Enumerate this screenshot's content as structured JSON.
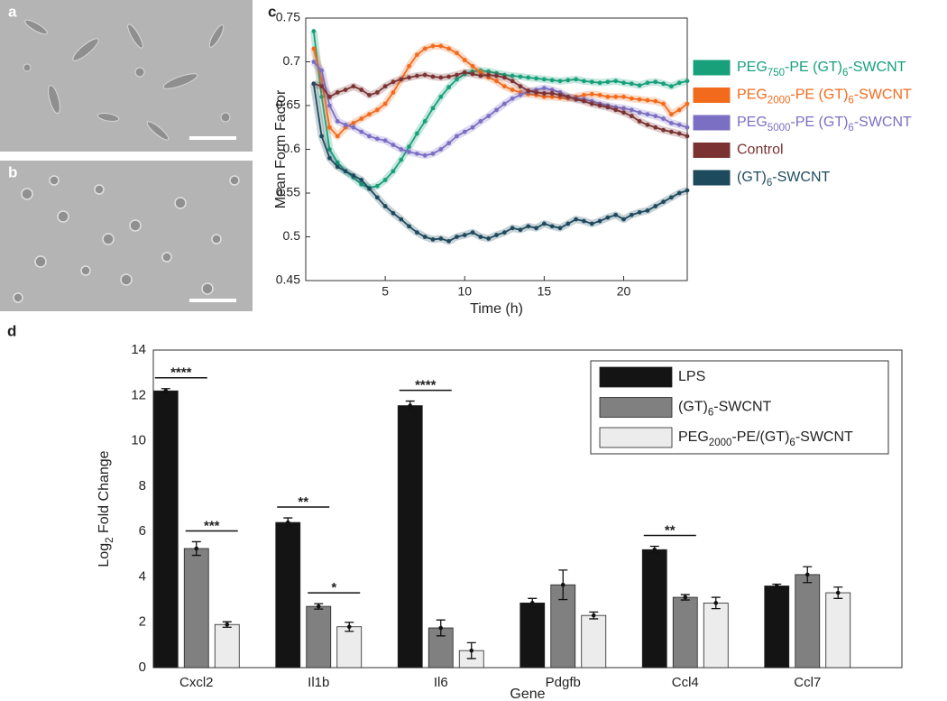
{
  "panel_labels": [
    "a",
    "b",
    "c",
    "d"
  ],
  "chart_data": [
    {
      "type": "line",
      "x_label": "Time (h)",
      "y_label": "Mean Form Factor",
      "xlim": [
        0,
        24
      ],
      "xticks": [
        5,
        10,
        15,
        20
      ],
      "ylim": [
        0.45,
        0.75
      ],
      "yticks": [
        0.45,
        0.5,
        0.55,
        0.6,
        0.65,
        0.7,
        0.75
      ],
      "x": [
        0.5,
        1,
        1.5,
        2,
        2.5,
        3,
        3.5,
        4,
        4.5,
        5,
        5.5,
        6,
        6.5,
        7,
        7.5,
        8,
        8.5,
        9,
        9.5,
        10,
        10.5,
        11,
        11.5,
        12,
        12.5,
        13,
        13.5,
        14,
        14.5,
        15,
        15.5,
        16,
        16.5,
        17,
        17.5,
        18,
        18.5,
        19,
        19.5,
        20,
        20.5,
        21,
        21.5,
        22,
        22.5,
        23,
        23.5,
        24
      ],
      "series": [
        {
          "name": "PEG750-PE (GT)6-SWCNT",
          "color": "#17a07a",
          "values": [
            0.735,
            0.66,
            0.6,
            0.585,
            0.575,
            0.568,
            0.56,
            0.556,
            0.558,
            0.565,
            0.575,
            0.588,
            0.603,
            0.618,
            0.632,
            0.647,
            0.66,
            0.671,
            0.68,
            0.686,
            0.689,
            0.69,
            0.689,
            0.687,
            0.685,
            0.684,
            0.683,
            0.682,
            0.681,
            0.68,
            0.679,
            0.678,
            0.679,
            0.68,
            0.678,
            0.677,
            0.676,
            0.677,
            0.678,
            0.676,
            0.675,
            0.673,
            0.676,
            0.677,
            0.675,
            0.672,
            0.676,
            0.678
          ]
        },
        {
          "name": "PEG2000-PE (GT)6-SWCNT",
          "color": "#f26b1d",
          "values": [
            0.715,
            0.68,
            0.625,
            0.615,
            0.625,
            0.63,
            0.635,
            0.64,
            0.645,
            0.652,
            0.665,
            0.68,
            0.695,
            0.708,
            0.715,
            0.718,
            0.718,
            0.715,
            0.71,
            0.702,
            0.695,
            0.688,
            0.682,
            0.678,
            0.672,
            0.668,
            0.665,
            0.663,
            0.662,
            0.66,
            0.66,
            0.659,
            0.658,
            0.66,
            0.662,
            0.663,
            0.662,
            0.66,
            0.66,
            0.66,
            0.658,
            0.657,
            0.656,
            0.655,
            0.652,
            0.64,
            0.645,
            0.652
          ]
        },
        {
          "name": "PEG5000-PE (GT)6-SWCNT",
          "color": "#7b6fc4",
          "values": [
            0.7,
            0.69,
            0.65,
            0.632,
            0.628,
            0.625,
            0.62,
            0.615,
            0.612,
            0.61,
            0.605,
            0.6,
            0.597,
            0.595,
            0.593,
            0.595,
            0.6,
            0.607,
            0.615,
            0.62,
            0.625,
            0.632,
            0.638,
            0.645,
            0.652,
            0.658,
            0.662,
            0.666,
            0.668,
            0.67,
            0.668,
            0.665,
            0.66,
            0.658,
            0.657,
            0.655,
            0.652,
            0.65,
            0.648,
            0.647,
            0.645,
            0.642,
            0.64,
            0.638,
            0.635,
            0.63,
            0.628,
            0.625
          ]
        },
        {
          "name": "Control",
          "color": "#7b3232",
          "values": [
            0.675,
            0.672,
            0.66,
            0.665,
            0.668,
            0.672,
            0.668,
            0.662,
            0.665,
            0.672,
            0.677,
            0.68,
            0.682,
            0.684,
            0.685,
            0.683,
            0.682,
            0.683,
            0.685,
            0.688,
            0.686,
            0.684,
            0.685,
            0.684,
            0.682,
            0.678,
            0.672,
            0.667,
            0.665,
            0.664,
            0.664,
            0.662,
            0.66,
            0.657,
            0.655,
            0.652,
            0.65,
            0.648,
            0.645,
            0.642,
            0.638,
            0.632,
            0.628,
            0.625,
            0.622,
            0.62,
            0.618,
            0.615
          ]
        },
        {
          "name": "(GT)6-SWCNT",
          "color": "#1e4a5e",
          "values": [
            0.675,
            0.615,
            0.59,
            0.58,
            0.575,
            0.57,
            0.565,
            0.555,
            0.545,
            0.535,
            0.527,
            0.52,
            0.512,
            0.505,
            0.5,
            0.497,
            0.498,
            0.495,
            0.5,
            0.502,
            0.505,
            0.5,
            0.498,
            0.502,
            0.505,
            0.51,
            0.508,
            0.512,
            0.51,
            0.515,
            0.512,
            0.51,
            0.515,
            0.52,
            0.518,
            0.515,
            0.518,
            0.522,
            0.525,
            0.52,
            0.525,
            0.528,
            0.53,
            0.535,
            0.54,
            0.545,
            0.55,
            0.553
          ]
        }
      ]
    },
    {
      "type": "bar",
      "x_label": "Gene",
      "y_label": "Log2 Fold Change",
      "categories": [
        "Cxcl2",
        "Il1b",
        "Il6",
        "Pdgfb",
        "Ccl4",
        "Ccl7"
      ],
      "ylim": [
        0,
        14
      ],
      "yticks": [
        0,
        2,
        4,
        6,
        8,
        10,
        12,
        14
      ],
      "series": [
        {
          "name": "LPS",
          "color": "#141414",
          "values": [
            12.2,
            6.4,
            11.55,
            2.85,
            5.2,
            3.6
          ],
          "errors": [
            0.1,
            0.2,
            0.2,
            0.2,
            0.15,
            0.08
          ]
        },
        {
          "name": "(GT)6-SWCNT",
          "color": "#808080",
          "values": [
            5.25,
            2.7,
            1.75,
            3.65,
            3.1,
            4.1
          ],
          "errors": [
            0.3,
            0.12,
            0.35,
            0.65,
            0.12,
            0.35
          ]
        },
        {
          "name": "PEG2000-PE/(GT)6-SWCNT",
          "color": "#ececec",
          "values": [
            1.9,
            1.8,
            0.75,
            2.3,
            2.85,
            3.3
          ],
          "errors": [
            0.12,
            0.2,
            0.35,
            0.15,
            0.25,
            0.25
          ]
        }
      ],
      "annotations": [
        {
          "label": "****",
          "category": 0,
          "series": [
            0,
            1
          ]
        },
        {
          "label": "***",
          "category": 0,
          "series": [
            1,
            2
          ]
        },
        {
          "label": "**",
          "category": 1,
          "series": [
            0,
            1
          ]
        },
        {
          "label": "*",
          "category": 1,
          "series": [
            1,
            2
          ]
        },
        {
          "label": "****",
          "category": 2,
          "series": [
            0,
            1
          ]
        },
        {
          "label": "**",
          "category": 4,
          "series": [
            0,
            1
          ]
        }
      ]
    }
  ]
}
